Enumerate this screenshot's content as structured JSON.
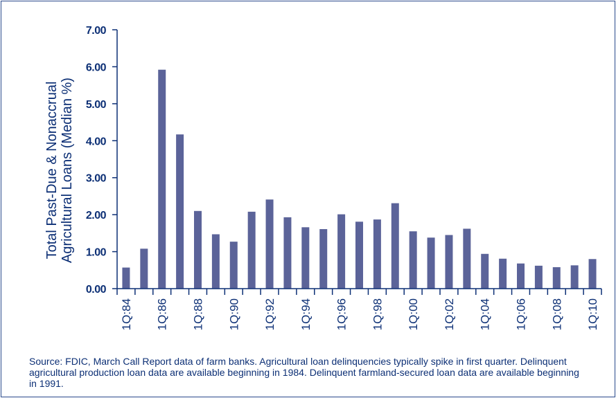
{
  "chart_data": {
    "type": "bar",
    "categories": [
      "1Q:84",
      "1Q:85",
      "1Q:86",
      "1Q:87",
      "1Q:88",
      "1Q:89",
      "1Q:90",
      "1Q:91",
      "1Q:92",
      "1Q:93",
      "1Q:94",
      "1Q:95",
      "1Q:96",
      "1Q:97",
      "1Q:98",
      "1Q:99",
      "1Q:00",
      "1Q:01",
      "1Q:02",
      "1Q:03",
      "1Q:04",
      "1Q:05",
      "1Q:06",
      "1Q:07",
      "1Q:08",
      "1Q:09",
      "1Q:10"
    ],
    "tick_labels": [
      "1Q:84",
      "1Q:86",
      "1Q:88",
      "1Q:90",
      "1Q:92",
      "1Q:94",
      "1Q:96",
      "1Q:98",
      "1Q:00",
      "1Q:02",
      "1Q:04",
      "1Q:06",
      "1Q:08",
      "1Q:10"
    ],
    "values": [
      0.57,
      1.08,
      5.92,
      4.17,
      2.1,
      1.47,
      1.27,
      2.08,
      2.41,
      1.93,
      1.66,
      1.61,
      2.01,
      1.81,
      1.87,
      2.31,
      1.55,
      1.38,
      1.45,
      1.62,
      0.94,
      0.81,
      0.68,
      0.62,
      0.58,
      0.63,
      0.8
    ],
    "ylim": [
      0,
      7
    ],
    "yticks": [
      "0.00",
      "1.00",
      "2.00",
      "3.00",
      "4.00",
      "5.00",
      "6.00",
      "7.00"
    ],
    "ylabel_line1": "Total Past-Due & Nonaccrual",
    "ylabel_line2": "Agricultural Loans (Median %)",
    "bar_color": "#5b6399",
    "axis_color": "#0c2f75"
  },
  "source_note": "Source:  FDIC, March Call Report data of farm banks. Agricultural loan delinquencies typically spike in first quarter. Delinquent agricultural production loan data are available beginning in 1984. Delinquent farmland-secured loan data are available beginning in 1991."
}
